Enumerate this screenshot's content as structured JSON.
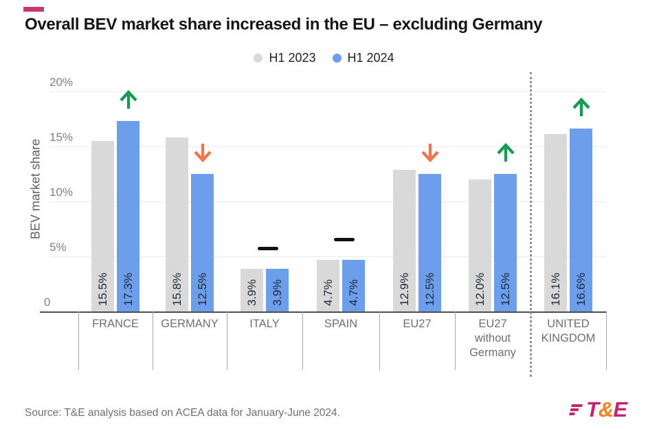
{
  "accent_color": "#c43a6e",
  "title": "Overall BEV market share increased in the EU – excluding Germany",
  "chart_data": {
    "type": "bar",
    "grouped": true,
    "title": "Overall BEV market share increased in the EU – excluding Germany",
    "xlabel": "",
    "ylabel": "BEV market share",
    "ylim": [
      0,
      20
    ],
    "grid": true,
    "legend_position": "top",
    "yticks": [
      {
        "value": 20,
        "label": "20%"
      },
      {
        "value": 15,
        "label": "15%"
      },
      {
        "value": 10,
        "label": "10%"
      },
      {
        "value": 5,
        "label": "5%"
      },
      {
        "value": 0,
        "label": "0"
      }
    ],
    "categories": [
      "FRANCE",
      "GERMANY",
      "ITALY",
      "SPAIN",
      "EU27",
      "EU27 without Germany",
      "UNITED KINGDOM"
    ],
    "series": [
      {
        "name": "H1 2023",
        "color": "#d9d9d9",
        "values": [
          15.5,
          15.8,
          3.9,
          4.7,
          12.9,
          12.0,
          16.1
        ]
      },
      {
        "name": "H1 2024",
        "color": "#6d9eeb",
        "values": [
          17.3,
          12.5,
          3.9,
          4.7,
          12.5,
          12.5,
          16.6
        ]
      }
    ],
    "value_labels": [
      [
        "15.5%",
        "17.3%"
      ],
      [
        "15.8%",
        "12.5%"
      ],
      [
        "3.9%",
        "3.9%"
      ],
      [
        "4.7%",
        "4.7%"
      ],
      [
        "12.9%",
        "12.5%"
      ],
      [
        "12.0%",
        "12.5%"
      ],
      [
        "16.1%",
        "16.6%"
      ]
    ],
    "trends": [
      "up",
      "down",
      "flat",
      "flat",
      "down",
      "up",
      "up"
    ],
    "trend_colors": {
      "up": "#169a52",
      "down": "#f0734a",
      "flat": "#121212"
    },
    "divider": {
      "style": "dotted",
      "between": [
        "EU27 without Germany",
        "UNITED KINGDOM"
      ]
    }
  },
  "source": "Source: T&E analysis based on ACEA data for January-June 2024.",
  "logo": {
    "t": "T",
    "amp": "&",
    "e": "E",
    "color_primary": "#c2256d",
    "color_amp": "#f58220"
  }
}
